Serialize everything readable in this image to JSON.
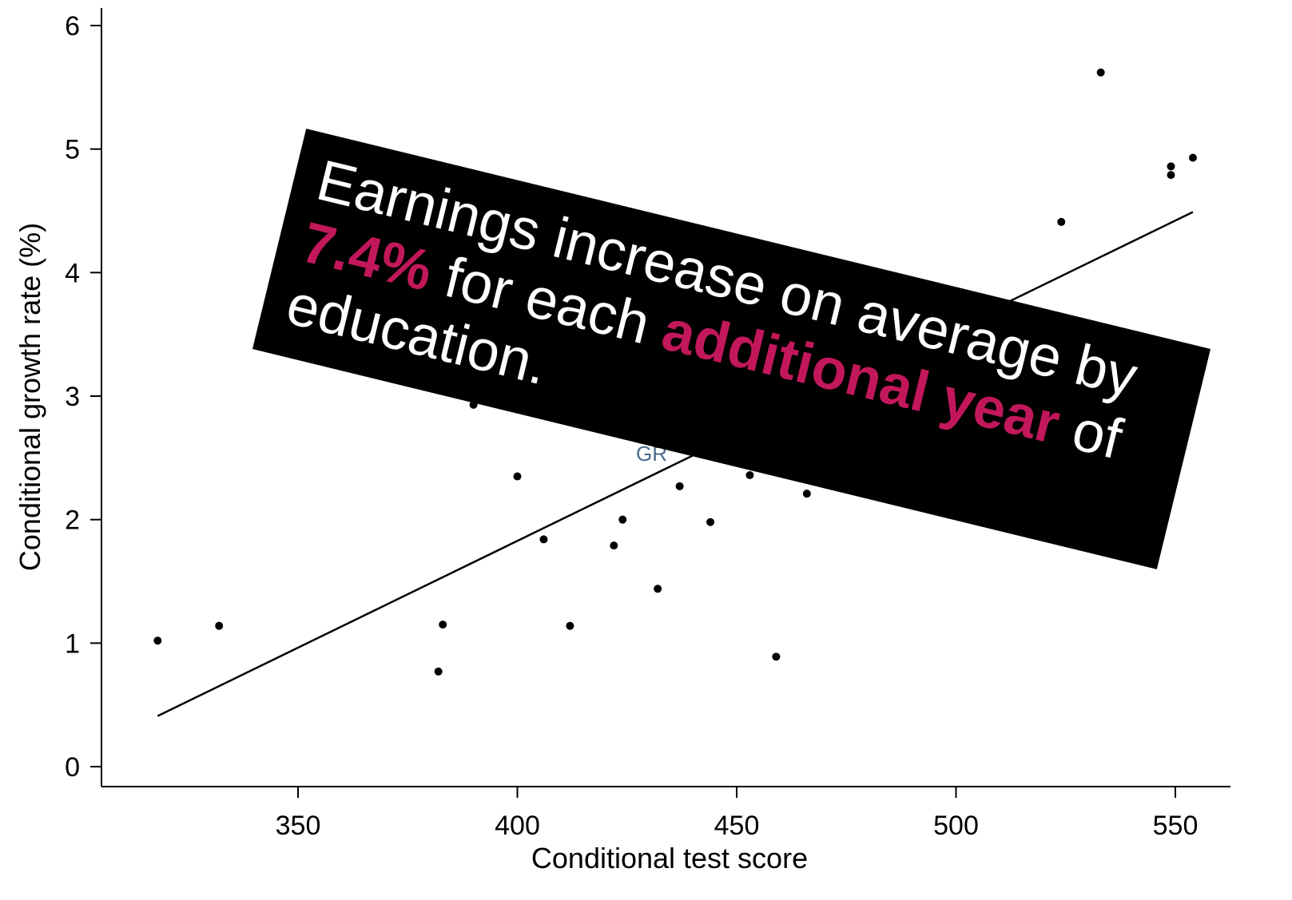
{
  "chart_data": {
    "type": "scatter",
    "xlabel": "Conditional test score",
    "ylabel": "Conditional growth rate (%)",
    "xlim": [
      305,
      565
    ],
    "ylim": [
      -0.15,
      6.1
    ],
    "xticks": [
      350,
      400,
      450,
      500,
      550
    ],
    "yticks": [
      0,
      1,
      2,
      3,
      4,
      5,
      6
    ],
    "grid": false,
    "points": [
      {
        "x": 318,
        "y": 1.02
      },
      {
        "x": 332,
        "y": 1.14
      },
      {
        "x": 382,
        "y": 0.77
      },
      {
        "x": 383,
        "y": 1.15
      },
      {
        "x": 390,
        "y": 2.93
      },
      {
        "x": 400,
        "y": 2.35
      },
      {
        "x": 406,
        "y": 1.84
      },
      {
        "x": 412,
        "y": 1.14
      },
      {
        "x": 422,
        "y": 1.79
      },
      {
        "x": 424,
        "y": 2.0
      },
      {
        "x": 432,
        "y": 1.44
      },
      {
        "x": 437,
        "y": 2.27
      },
      {
        "x": 444,
        "y": 1.98
      },
      {
        "x": 453,
        "y": 2.36
      },
      {
        "x": 459,
        "y": 0.89
      },
      {
        "x": 466,
        "y": 2.21
      },
      {
        "x": 524,
        "y": 4.41
      },
      {
        "x": 533,
        "y": 5.62
      },
      {
        "x": 549,
        "y": 4.79
      },
      {
        "x": 549,
        "y": 4.86
      },
      {
        "x": 554,
        "y": 4.93
      }
    ],
    "fit_line": {
      "x": [
        318,
        554
      ],
      "y": [
        0.41,
        4.49
      ]
    },
    "partial_label": "GR"
  },
  "banner": {
    "text_1": "Earnings increase on average by ",
    "highlight_1": "7.4%",
    "text_2": " for each ",
    "highlight_2": "additional year",
    "text_3": " of education.",
    "text_color": "#ffffff",
    "highlight_color": "#c2185b",
    "background": "#000000"
  }
}
